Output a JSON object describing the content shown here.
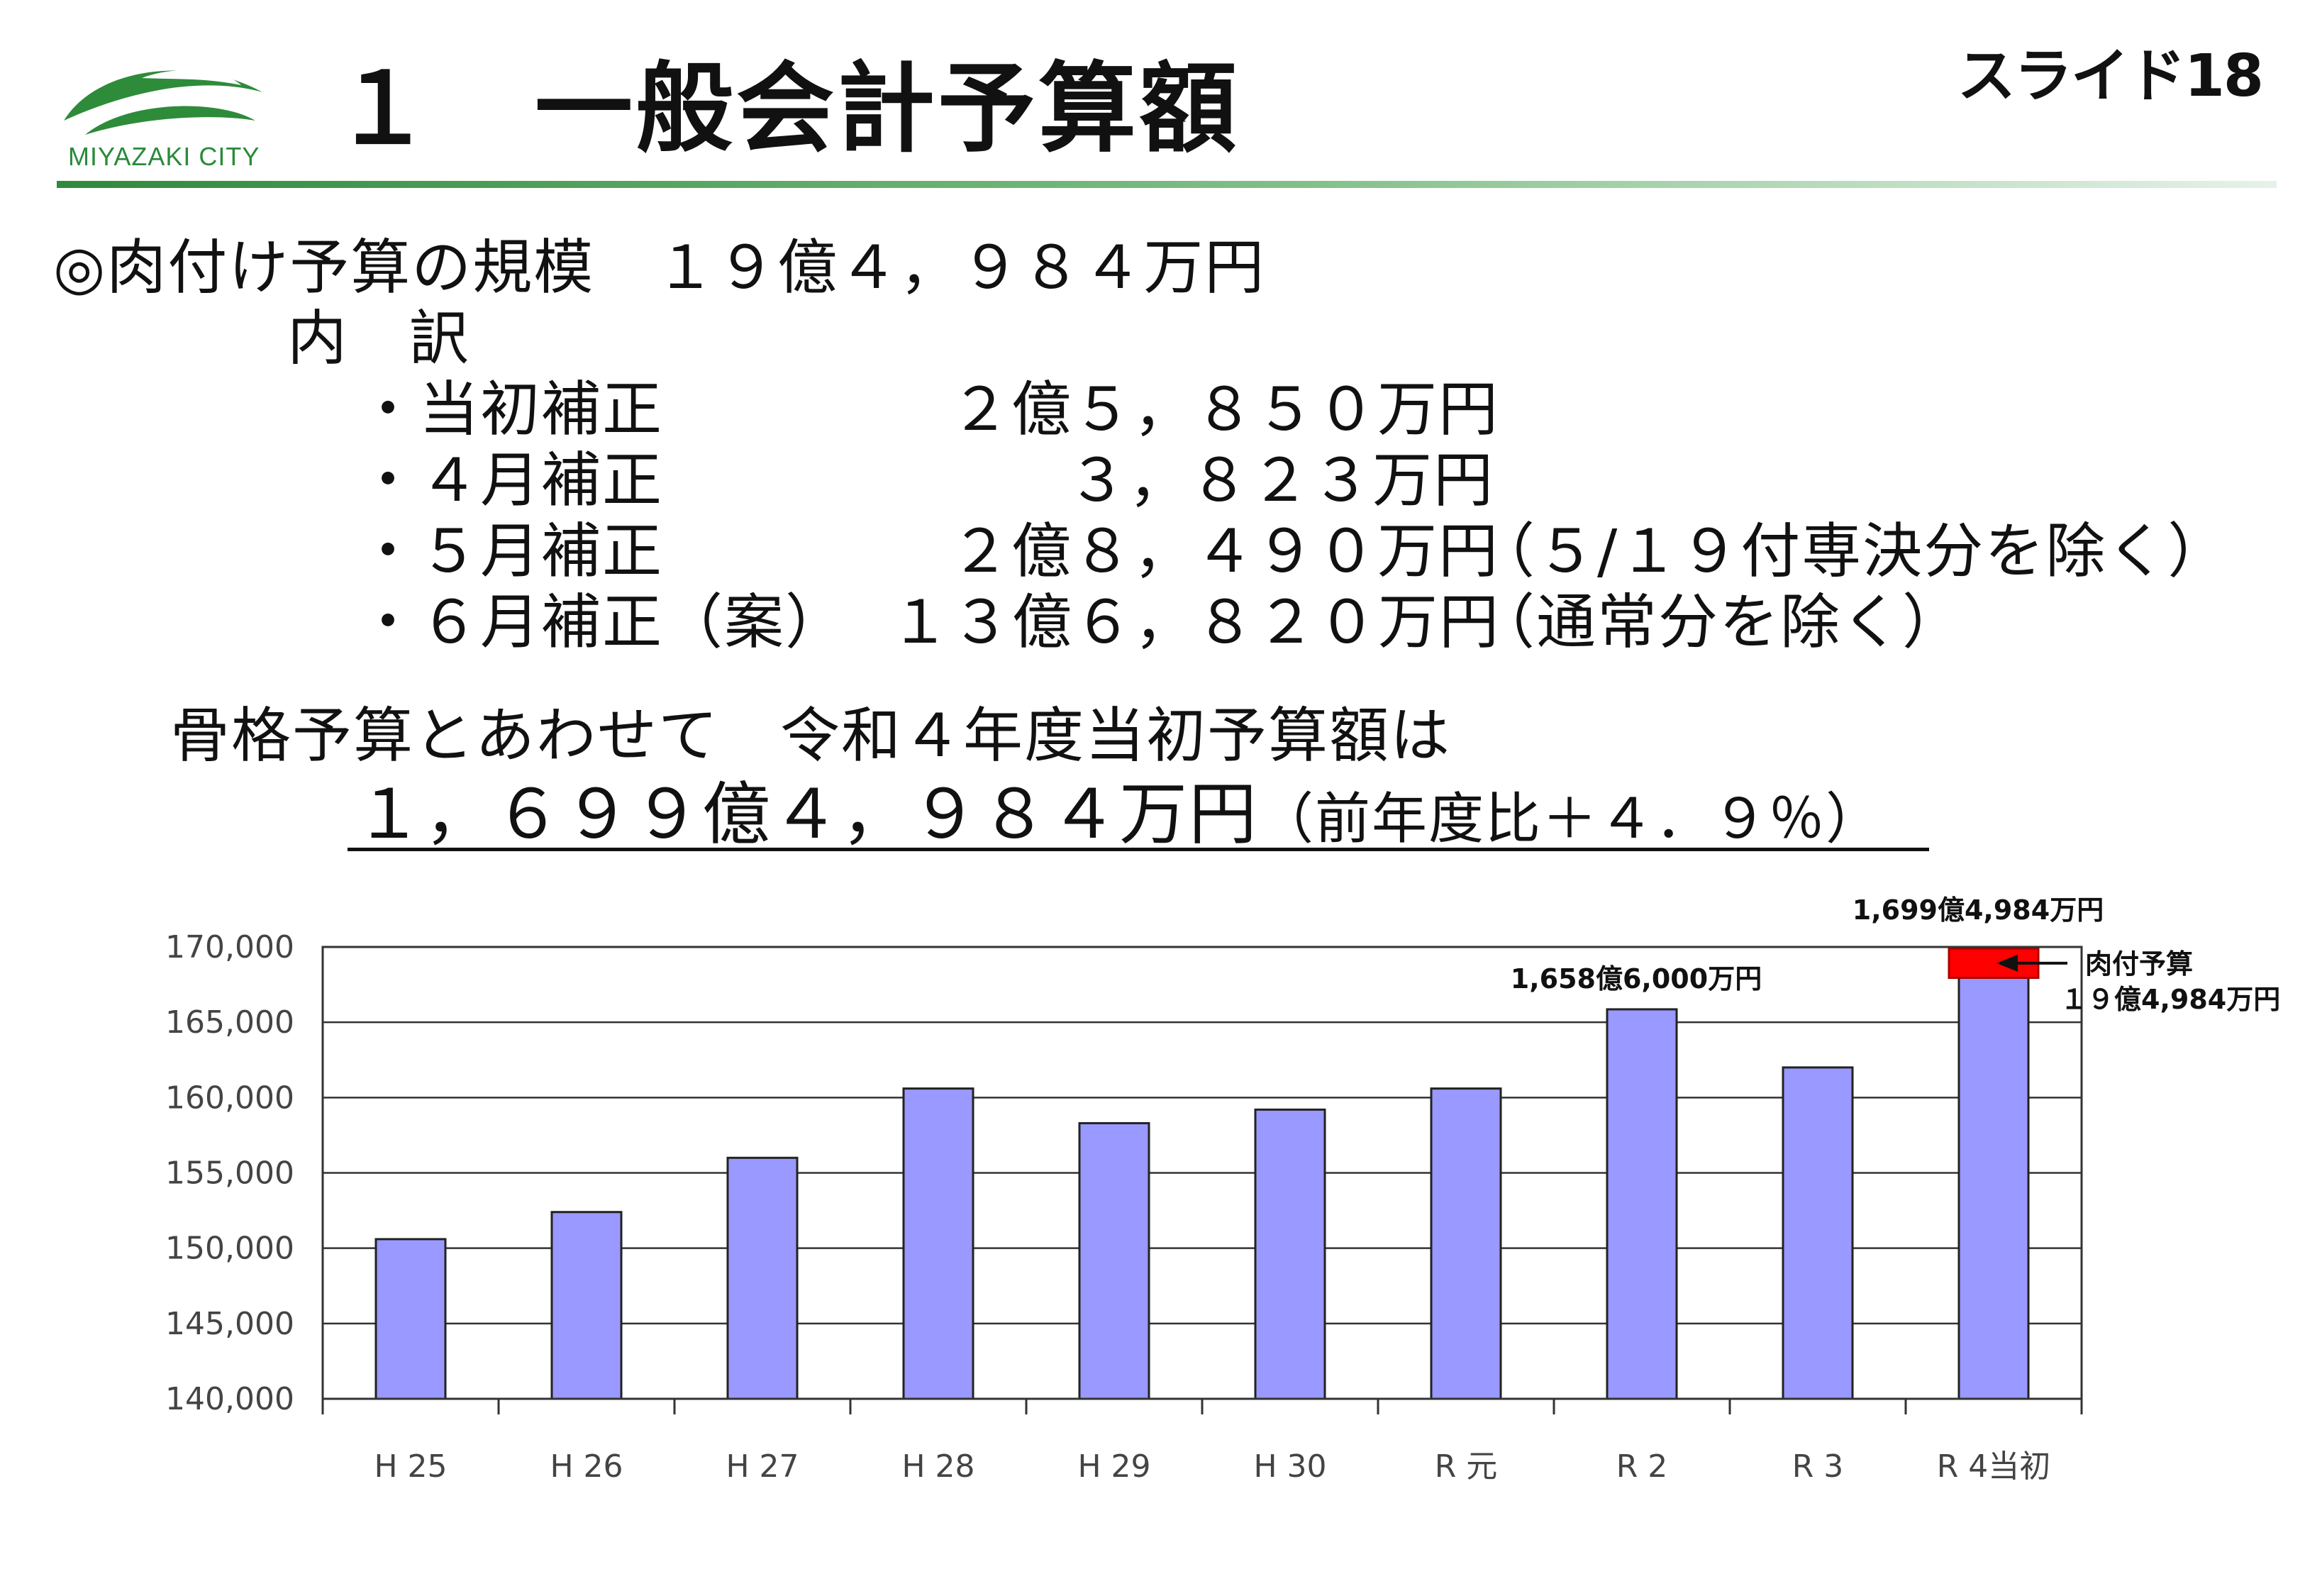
{
  "header": {
    "title": "１　一般会計予算額",
    "slide_label": "スライド18",
    "logo_text": "MIYAZAKI CITY",
    "logo_icon": "miyazaki-city-logo"
  },
  "body": {
    "scale_line": "◎肉付け予算の規模　１９億４，９８４万円",
    "breakdown_label": "内　訳",
    "items": [
      {
        "label": "・当初補正",
        "amount": "２億５，８５０万円",
        "note": ""
      },
      {
        "label": "・４月補正",
        "amount": "３，８２３万円",
        "note": ""
      },
      {
        "label": "・５月補正",
        "amount": "２億８，４９０万円",
        "note": "（５/１９付専決分を除く）"
      },
      {
        "label": "・６月補正（案）",
        "amount": "１３億６，８２０万円",
        "note": "（通常分を除く）"
      }
    ],
    "summary_line": "骨格予算とあわせて　令和４年度当初予算額は",
    "total_main": "１，６９９億４，９８４万円",
    "total_suffix": "（前年度比＋４．９％）"
  },
  "chart_data": {
    "type": "bar",
    "categories": [
      "H25",
      "H26",
      "H27",
      "H28",
      "H29",
      "H30",
      "R元",
      "R2",
      "R3",
      "R4当初"
    ],
    "category_labels": [
      "H 25",
      "H 26",
      "H 27",
      "H 28",
      "H 29",
      "H 30",
      "R 元",
      "R 2",
      "R 3",
      "R 4当初"
    ],
    "series": [
      {
        "values": [
          150600,
          152400,
          156000,
          160600,
          158300,
          159200,
          160600,
          165860,
          162000,
          167950
        ],
        "color": "#9999ff"
      },
      {
        "values": [
          0,
          0,
          0,
          0,
          0,
          0,
          0,
          0,
          0,
          1950
        ],
        "color": "#ff0000"
      }
    ],
    "ylim": [
      140000,
      170000
    ],
    "yticks": [
      140000,
      145000,
      150000,
      155000,
      160000,
      165000,
      170000
    ],
    "ytick_labels": [
      "140,000",
      "145,000",
      "150,000",
      "155,000",
      "160,000",
      "165,000",
      "170,000"
    ],
    "grid": true,
    "annotations": {
      "r2_total": "1,658億6,000万円",
      "r4_total": "1,699億4,984万円",
      "nikuzuke_label": "肉付予算",
      "nikuzuke_amount": "１９億4,984万円"
    }
  }
}
